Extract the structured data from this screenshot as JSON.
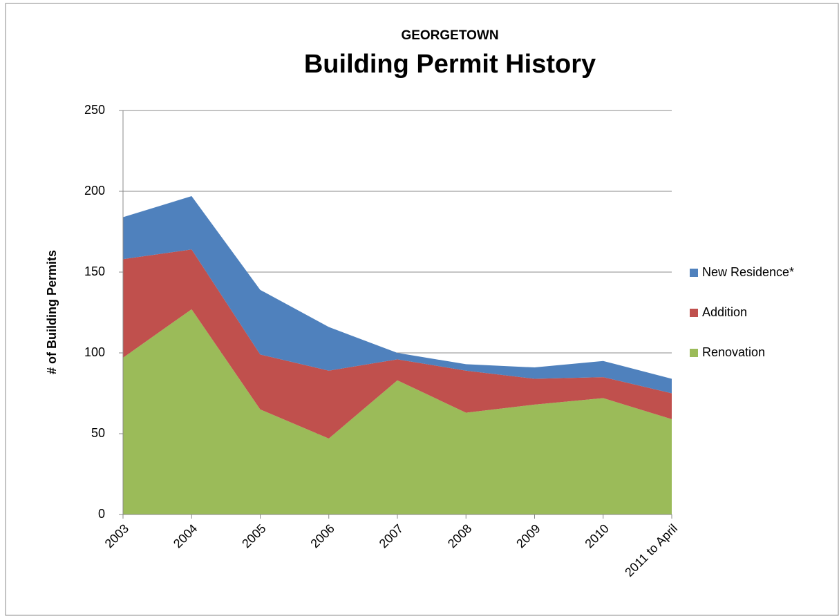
{
  "chart_data": {
    "type": "stacked_area",
    "supertitle": "GEORGETOWN",
    "title": "Building Permit History",
    "y_label": "# of Building Permits",
    "categories": [
      "2003",
      "2004",
      "2005",
      "2006",
      "2007",
      "2008",
      "2009",
      "2010",
      "2011 to April"
    ],
    "series": [
      {
        "name": "Renovation",
        "color": "#9bbb59",
        "values": [
          97,
          127,
          65,
          47,
          83,
          63,
          68,
          72,
          59
        ]
      },
      {
        "name": "Addition",
        "color": "#c0504d",
        "values": [
          61,
          37,
          34,
          42,
          13,
          26,
          16,
          13,
          16
        ]
      },
      {
        "name": "New Residence*",
        "color": "#4f81bd",
        "values": [
          26,
          33,
          40,
          27,
          4,
          4,
          7,
          10,
          9
        ]
      }
    ],
    "ylim": [
      0,
      250
    ],
    "yticks": [
      0,
      50,
      100,
      150,
      200,
      250
    ],
    "grid": true,
    "legend": "right"
  }
}
